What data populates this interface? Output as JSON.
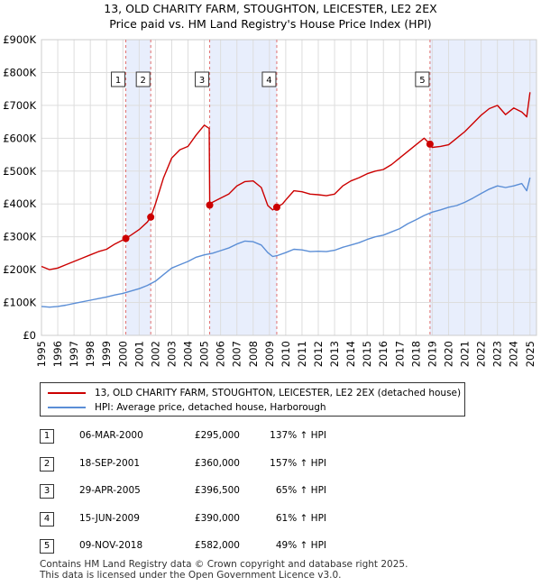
{
  "chart_data": {
    "type": "line",
    "title": "13, OLD CHARITY FARM, STOUGHTON, LEICESTER, LE2 2EX",
    "subtitle": "Price paid vs. HM Land Registry's House Price Index (HPI)",
    "xlabel": "",
    "ylabel": "",
    "xlim": [
      1995,
      2025.4
    ],
    "ylim": [
      0,
      900000
    ],
    "grid": true,
    "y_ticks": [
      {
        "value": 0,
        "label": "£0"
      },
      {
        "value": 100000,
        "label": "£100K"
      },
      {
        "value": 200000,
        "label": "£200K"
      },
      {
        "value": 300000,
        "label": "£300K"
      },
      {
        "value": 400000,
        "label": "£400K"
      },
      {
        "value": 500000,
        "label": "£500K"
      },
      {
        "value": 600000,
        "label": "£600K"
      },
      {
        "value": 700000,
        "label": "£700K"
      },
      {
        "value": 800000,
        "label": "£800K"
      },
      {
        "value": 900000,
        "label": "£900K"
      }
    ],
    "x_ticks": [
      "1995",
      "1996",
      "1997",
      "1998",
      "1999",
      "2000",
      "2001",
      "2002",
      "2003",
      "2004",
      "2005",
      "2006",
      "2007",
      "2008",
      "2009",
      "2010",
      "2011",
      "2012",
      "2013",
      "2014",
      "2015",
      "2016",
      "2017",
      "2018",
      "2019",
      "2020",
      "2021",
      "2022",
      "2023",
      "2024",
      "2025"
    ],
    "series": [
      {
        "name": "13, OLD CHARITY FARM, STOUGHTON, LEICESTER, LE2 2EX (detached house)",
        "color": "#cc0000",
        "x": [
          1995.0,
          1995.5,
          1996.0,
          1996.5,
          1997.0,
          1997.5,
          1998.0,
          1998.5,
          1999.0,
          1999.5,
          2000.18,
          2000.5,
          2001.0,
          2001.5,
          2001.71,
          2002.0,
          2002.5,
          2003.0,
          2003.5,
          2004.0,
          2004.5,
          2005.0,
          2005.3,
          2005.33,
          2005.5,
          2006.0,
          2006.5,
          2007.0,
          2007.5,
          2008.0,
          2008.5,
          2008.9,
          2009.2,
          2009.45,
          2009.8,
          2010.0,
          2010.5,
          2011.0,
          2011.5,
          2012.0,
          2012.5,
          2013.0,
          2013.5,
          2014.0,
          2014.5,
          2015.0,
          2015.5,
          2016.0,
          2016.5,
          2017.0,
          2017.5,
          2018.0,
          2018.5,
          2018.86,
          2019.0,
          2019.5,
          2020.0,
          2020.5,
          2021.0,
          2021.5,
          2022.0,
          2022.5,
          2023.0,
          2023.5,
          2024.0,
          2024.5,
          2024.8,
          2025.0
        ],
        "y": [
          210000,
          200000,
          205000,
          215000,
          225000,
          235000,
          245000,
          255000,
          262000,
          278000,
          295000,
          305000,
          322000,
          345000,
          360000,
          400000,
          480000,
          540000,
          565000,
          575000,
          610000,
          640000,
          630000,
          396500,
          405000,
          418000,
          430000,
          455000,
          468000,
          470000,
          450000,
          395000,
          382000,
          390000,
          400000,
          412000,
          440000,
          437000,
          430000,
          428000,
          425000,
          430000,
          455000,
          470000,
          480000,
          492000,
          500000,
          505000,
          520000,
          540000,
          560000,
          580000,
          600000,
          582000,
          572000,
          575000,
          580000,
          600000,
          620000,
          645000,
          670000,
          690000,
          700000,
          672000,
          692000,
          680000,
          665000,
          740000
        ]
      },
      {
        "name": "HPI: Average price, detached house, Harborough",
        "color": "#5b8ed6",
        "x": [
          1995.0,
          1995.5,
          1996.0,
          1996.5,
          1997.0,
          1997.5,
          1998.0,
          1998.5,
          1999.0,
          1999.5,
          2000.0,
          2000.5,
          2001.0,
          2001.5,
          2002.0,
          2002.5,
          2003.0,
          2003.5,
          2004.0,
          2004.5,
          2005.0,
          2005.5,
          2006.0,
          2006.5,
          2007.0,
          2007.5,
          2008.0,
          2008.5,
          2008.9,
          2009.2,
          2009.5,
          2010.0,
          2010.5,
          2011.0,
          2011.5,
          2012.0,
          2012.5,
          2013.0,
          2013.5,
          2014.0,
          2014.5,
          2015.0,
          2015.5,
          2016.0,
          2016.5,
          2017.0,
          2017.5,
          2018.0,
          2018.5,
          2019.0,
          2019.5,
          2020.0,
          2020.5,
          2021.0,
          2021.5,
          2022.0,
          2022.5,
          2023.0,
          2023.5,
          2024.0,
          2024.5,
          2024.8,
          2025.0
        ],
        "y": [
          88000,
          86000,
          88000,
          92000,
          97000,
          102000,
          107000,
          112000,
          117000,
          123000,
          128000,
          135000,
          142000,
          152000,
          165000,
          185000,
          205000,
          215000,
          225000,
          238000,
          245000,
          250000,
          258000,
          266000,
          278000,
          287000,
          285000,
          275000,
          252000,
          240000,
          243000,
          252000,
          262000,
          260000,
          255000,
          256000,
          255000,
          259000,
          268000,
          275000,
          282000,
          292000,
          300000,
          305000,
          315000,
          325000,
          340000,
          352000,
          365000,
          375000,
          382000,
          390000,
          395000,
          405000,
          418000,
          432000,
          445000,
          455000,
          450000,
          455000,
          462000,
          440000,
          480000
        ]
      }
    ],
    "sales": [
      {
        "id": "1",
        "x": 2000.18,
        "price": 295000
      },
      {
        "id": "2",
        "x": 2001.71,
        "price": 360000
      },
      {
        "id": "3",
        "x": 2005.33,
        "price": 396500
      },
      {
        "id": "4",
        "x": 2009.45,
        "price": 390000
      },
      {
        "id": "5",
        "x": 2018.86,
        "price": 582000
      }
    ],
    "shaded_ranges": [
      [
        2000.18,
        2001.71
      ],
      [
        2005.33,
        2009.45
      ],
      [
        2018.86,
        2025.4
      ]
    ]
  },
  "legend": {
    "items": [
      {
        "label": "13, OLD CHARITY FARM, STOUGHTON, LEICESTER, LE2 2EX (detached house)",
        "color": "#cc0000"
      },
      {
        "label": "HPI: Average price, detached house, Harborough",
        "color": "#5b8ed6"
      }
    ]
  },
  "sales_table": [
    {
      "num": "1",
      "date": "06-MAR-2000",
      "price": "£295,000",
      "hpi": "137% ↑ HPI"
    },
    {
      "num": "2",
      "date": "18-SEP-2001",
      "price": "£360,000",
      "hpi": "157% ↑ HPI"
    },
    {
      "num": "3",
      "date": "29-APR-2005",
      "price": "£396,500",
      "hpi": "65% ↑ HPI"
    },
    {
      "num": "4",
      "date": "15-JUN-2009",
      "price": "£390,000",
      "hpi": "61% ↑ HPI"
    },
    {
      "num": "5",
      "date": "09-NOV-2018",
      "price": "£582,000",
      "hpi": "49% ↑ HPI"
    }
  ],
  "footer": {
    "line1": "Contains HM Land Registry data © Crown copyright and database right 2025.",
    "line2": "This data is licensed under the Open Government Licence v3.0."
  },
  "colors": {
    "shade": "#e8eefc",
    "grid": "#dddddd",
    "vline": "#e07070"
  }
}
